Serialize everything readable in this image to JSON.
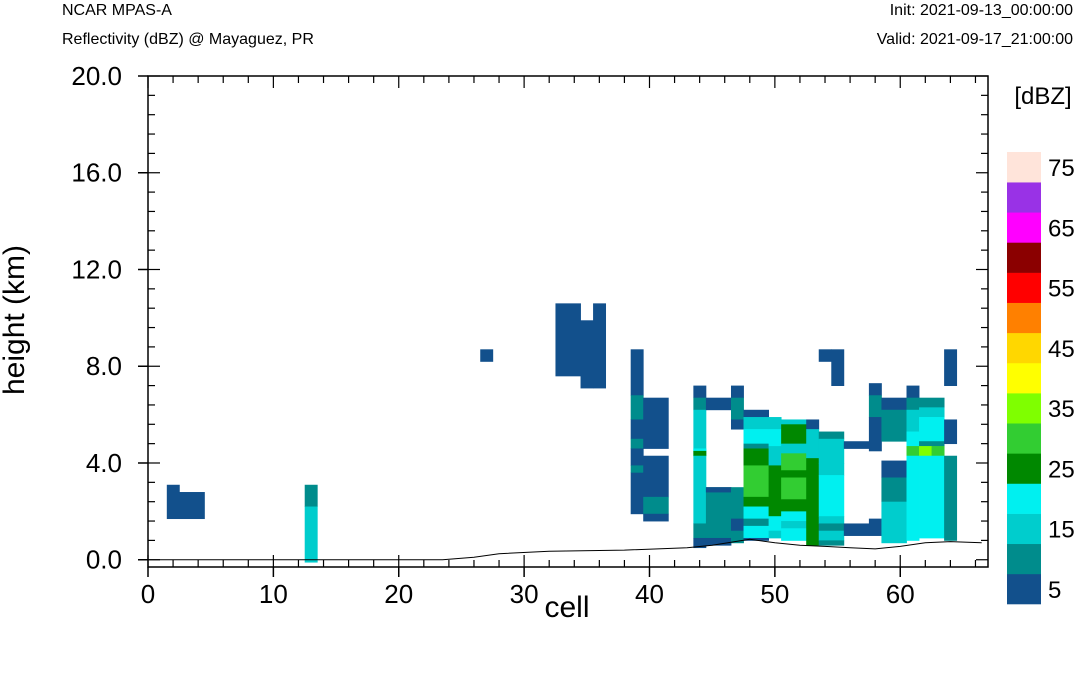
{
  "header": {
    "model": "NCAR MPAS-A",
    "field": "Reflectivity (dBZ) @ Mayaguez, PR",
    "init": "Init: 2021-09-13_00:00:00",
    "valid": "Valid: 2021-09-17_21:00:00"
  },
  "chart_data": {
    "type": "heatmap",
    "title": "",
    "xlabel": "cell",
    "ylabel": "height (km)",
    "xlim": [
      0,
      67
    ],
    "ylim": [
      -0.3,
      20
    ],
    "x_ticks": [
      0,
      10,
      20,
      30,
      40,
      50,
      60
    ],
    "x_tick_labels": [
      "0",
      "10",
      "20",
      "30",
      "40",
      "50",
      "60"
    ],
    "y_ticks": [
      0,
      4,
      8,
      12,
      16,
      20
    ],
    "y_tick_labels": [
      "0.0",
      "4.0",
      "8.0",
      "12.0",
      "16.0",
      "20.0"
    ],
    "grid": false,
    "colorbar": {
      "label": "[dBZ]",
      "placement": "right",
      "levels": [
        5,
        10,
        15,
        20,
        25,
        30,
        35,
        40,
        45,
        50,
        55,
        60,
        65,
        70,
        75
      ],
      "tick_labels": [
        "5",
        "15",
        "25",
        "35",
        "45",
        "55",
        "65",
        "75"
      ],
      "colors": [
        "#12508c",
        "#008c8c",
        "#00cdcd",
        "#00f0f0",
        "#008800",
        "#32cd32",
        "#7fff00",
        "#ffff00",
        "#ffd700",
        "#ff8000",
        "#ff0000",
        "#8b0000",
        "#ff00ff",
        "#9932e6",
        "#ffe4da"
      ]
    },
    "cells": [
      [
        1.5,
        2.5,
        1.7,
        3.1,
        5
      ],
      [
        2.5,
        4.5,
        1.7,
        2.8,
        5
      ],
      [
        12.5,
        13.5,
        2.2,
        3.1,
        10
      ],
      [
        12.5,
        13.5,
        -0.1,
        2.2,
        15
      ],
      [
        26.5,
        27.5,
        8.2,
        8.7,
        5
      ],
      [
        32.5,
        34.5,
        7.6,
        10.6,
        5
      ],
      [
        34.5,
        35.5,
        7.1,
        9.9,
        5
      ],
      [
        35.5,
        36.5,
        7.1,
        10.6,
        5
      ],
      [
        38.5,
        39.5,
        6.8,
        8.7,
        5
      ],
      [
        38.5,
        39.5,
        5.8,
        6.8,
        10
      ],
      [
        38.5,
        39.5,
        5.0,
        5.8,
        5
      ],
      [
        38.5,
        39.5,
        4.6,
        5.0,
        10
      ],
      [
        38.5,
        39.5,
        3.9,
        4.6,
        5
      ],
      [
        38.5,
        39.5,
        3.6,
        3.9,
        10
      ],
      [
        38.5,
        39.5,
        1.9,
        3.6,
        5
      ],
      [
        39.5,
        41.5,
        4.6,
        6.7,
        5
      ],
      [
        39.5,
        41.5,
        2.6,
        4.3,
        5
      ],
      [
        39.5,
        40.5,
        1.9,
        2.6,
        10
      ],
      [
        40.5,
        41.5,
        1.9,
        2.6,
        10
      ],
      [
        39.5,
        41.5,
        1.6,
        1.9,
        5
      ],
      [
        43.5,
        44.5,
        6.7,
        7.2,
        5
      ],
      [
        43.5,
        44.5,
        6.2,
        6.7,
        10
      ],
      [
        43.5,
        44.5,
        4.3,
        6.2,
        15
      ],
      [
        43.5,
        44.5,
        4.5,
        4.6,
        20
      ],
      [
        43.5,
        44.5,
        4.3,
        4.5,
        25
      ],
      [
        43.5,
        44.5,
        1.5,
        4.3,
        15
      ],
      [
        43.5,
        44.5,
        0.9,
        1.5,
        10
      ],
      [
        43.5,
        44.5,
        0.5,
        0.9,
        5
      ],
      [
        44.5,
        46.5,
        6.2,
        6.7,
        5
      ],
      [
        44.5,
        46.5,
        0.9,
        3.0,
        10
      ],
      [
        44.5,
        46.5,
        2.8,
        3.0,
        5
      ],
      [
        44.5,
        46.5,
        0.6,
        0.9,
        5
      ],
      [
        46.5,
        47.5,
        6.7,
        7.2,
        5
      ],
      [
        46.5,
        47.5,
        5.8,
        6.7,
        10
      ],
      [
        46.5,
        47.5,
        5.4,
        5.8,
        5
      ],
      [
        46.5,
        47.5,
        1.7,
        3.0,
        10
      ],
      [
        46.5,
        47.5,
        1.2,
        1.7,
        5
      ],
      [
        46.5,
        47.5,
        0.7,
        1.2,
        10
      ],
      [
        47.5,
        49.5,
        5.9,
        6.2,
        5
      ],
      [
        47.5,
        49.5,
        5.4,
        5.9,
        15
      ],
      [
        47.5,
        49.5,
        4.8,
        5.4,
        20
      ],
      [
        47.5,
        49.5,
        4.6,
        4.8,
        10
      ],
      [
        47.5,
        49.5,
        3.9,
        4.6,
        25
      ],
      [
        47.5,
        49.5,
        3.7,
        3.9,
        30
      ],
      [
        47.5,
        49.5,
        2.6,
        3.7,
        30
      ],
      [
        47.5,
        49.5,
        2.2,
        2.6,
        25
      ],
      [
        47.5,
        49.5,
        1.7,
        2.2,
        20
      ],
      [
        47.5,
        49.5,
        1.4,
        1.7,
        10
      ],
      [
        47.5,
        49.5,
        0.9,
        1.4,
        20
      ],
      [
        47.5,
        49.5,
        0.8,
        0.9,
        5
      ],
      [
        49.5,
        50.5,
        5.4,
        5.9,
        15
      ],
      [
        49.5,
        50.5,
        4.7,
        5.4,
        20
      ],
      [
        49.5,
        50.5,
        3.9,
        4.7,
        15
      ],
      [
        49.5,
        50.5,
        1.8,
        3.9,
        25
      ],
      [
        49.5,
        50.5,
        1.2,
        1.8,
        20
      ],
      [
        49.5,
        50.5,
        0.9,
        1.2,
        15
      ],
      [
        50.5,
        52.5,
        5.6,
        5.8,
        15
      ],
      [
        50.5,
        52.5,
        4.8,
        5.6,
        25
      ],
      [
        50.5,
        52.5,
        4.4,
        4.8,
        15
      ],
      [
        50.5,
        52.5,
        3.7,
        4.4,
        30
      ],
      [
        50.5,
        52.5,
        3.4,
        3.7,
        25
      ],
      [
        50.5,
        52.5,
        2.5,
        3.4,
        30
      ],
      [
        50.5,
        52.5,
        2.0,
        2.5,
        25
      ],
      [
        50.5,
        52.5,
        1.6,
        2.0,
        20
      ],
      [
        50.5,
        52.5,
        1.3,
        1.6,
        15
      ],
      [
        50.5,
        52.5,
        0.8,
        1.3,
        20
      ],
      [
        52.5,
        53.5,
        5.4,
        5.8,
        5
      ],
      [
        52.5,
        53.5,
        4.2,
        5.4,
        15
      ],
      [
        52.5,
        53.5,
        0.6,
        4.2,
        25
      ],
      [
        53.5,
        55.5,
        5.0,
        5.3,
        10
      ],
      [
        53.5,
        55.5,
        4.0,
        5.0,
        15
      ],
      [
        53.5,
        55.5,
        3.5,
        4.0,
        15
      ],
      [
        53.5,
        55.5,
        1.8,
        3.5,
        20
      ],
      [
        53.5,
        55.5,
        1.5,
        1.8,
        15
      ],
      [
        53.5,
        55.5,
        1.2,
        1.5,
        10
      ],
      [
        53.5,
        55.5,
        0.8,
        1.2,
        15
      ],
      [
        53.5,
        55.5,
        0.6,
        0.8,
        10
      ],
      [
        53.5,
        54.5,
        8.2,
        8.7,
        5
      ],
      [
        54.5,
        55.5,
        7.2,
        8.7,
        5
      ],
      [
        55.5,
        57.5,
        4.6,
        4.9,
        5
      ],
      [
        55.5,
        57.5,
        1.0,
        1.5,
        5
      ],
      [
        57.5,
        58.5,
        6.8,
        7.3,
        5
      ],
      [
        57.5,
        58.5,
        5.9,
        6.8,
        10
      ],
      [
        57.5,
        58.5,
        4.5,
        5.9,
        5
      ],
      [
        57.5,
        58.5,
        1.0,
        1.7,
        5
      ],
      [
        58.5,
        60.5,
        6.2,
        6.7,
        5
      ],
      [
        58.5,
        60.5,
        4.9,
        6.2,
        10
      ],
      [
        58.5,
        60.5,
        3.4,
        4.1,
        5
      ],
      [
        58.5,
        60.5,
        2.4,
        3.4,
        10
      ],
      [
        58.5,
        60.5,
        0.7,
        2.4,
        15
      ],
      [
        60.5,
        61.5,
        6.7,
        7.2,
        5
      ],
      [
        60.5,
        61.5,
        6.2,
        6.7,
        10
      ],
      [
        60.5,
        61.5,
        5.3,
        6.2,
        15
      ],
      [
        60.5,
        61.5,
        4.7,
        5.3,
        20
      ],
      [
        60.5,
        61.5,
        4.3,
        4.7,
        30
      ],
      [
        60.5,
        61.5,
        0.8,
        4.3,
        20
      ],
      [
        61.5,
        63.5,
        6.3,
        6.7,
        10
      ],
      [
        61.5,
        63.5,
        5.9,
        6.3,
        15
      ],
      [
        61.5,
        63.5,
        4.9,
        5.9,
        20
      ],
      [
        61.5,
        63.5,
        4.7,
        4.9,
        10
      ],
      [
        61.5,
        62.5,
        4.3,
        4.7,
        35
      ],
      [
        62.5,
        63.5,
        4.3,
        4.7,
        30
      ],
      [
        61.5,
        63.5,
        0.9,
        4.3,
        20
      ],
      [
        63.5,
        64.5,
        7.2,
        8.7,
        5
      ],
      [
        63.5,
        64.5,
        4.8,
        5.8,
        5
      ],
      [
        63.5,
        64.5,
        0.8,
        4.3,
        10
      ]
    ]
  }
}
